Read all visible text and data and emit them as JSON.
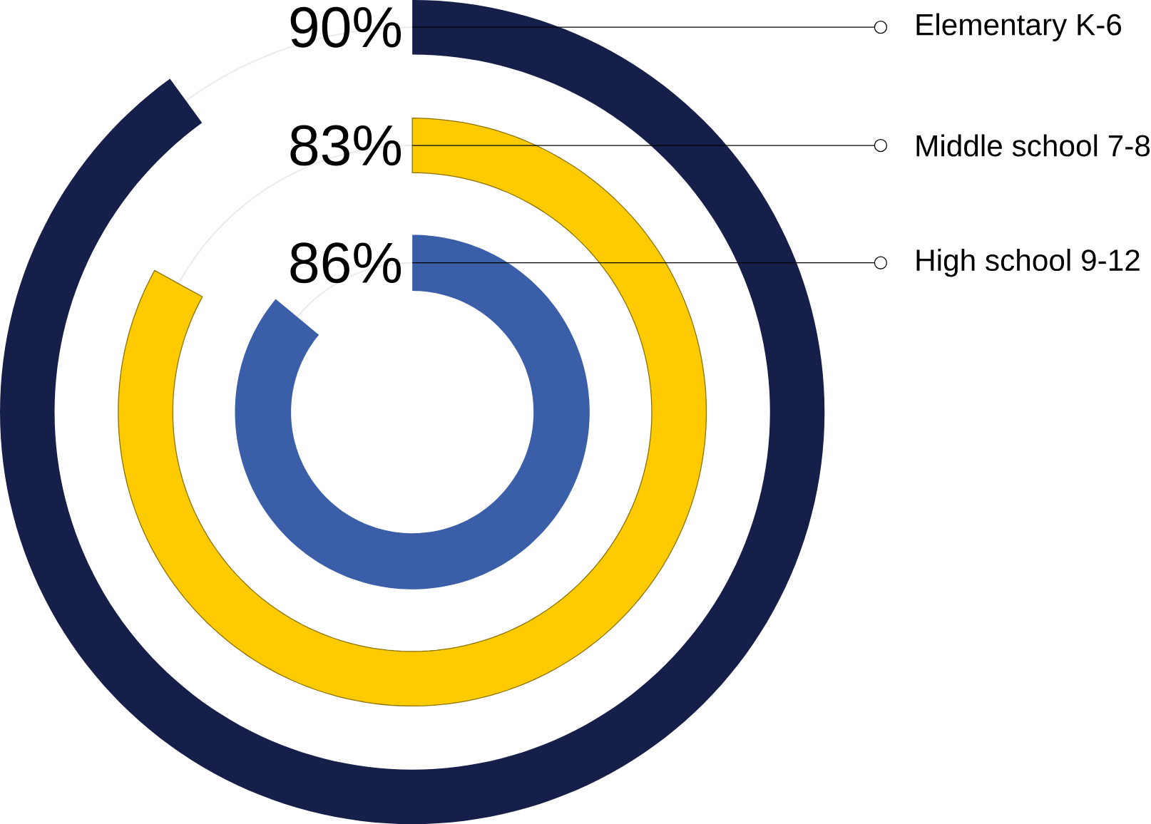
{
  "chart_data": {
    "type": "other",
    "categories": [
      "Elementary K-6",
      "Middle school 7-8",
      "High school 9-12"
    ],
    "values": [
      90,
      83,
      86
    ],
    "value_labels": [
      "90%",
      "83%",
      "86%"
    ],
    "colors": [
      "#161e4a",
      "#fdcb00",
      "#3a5ea8"
    ]
  }
}
